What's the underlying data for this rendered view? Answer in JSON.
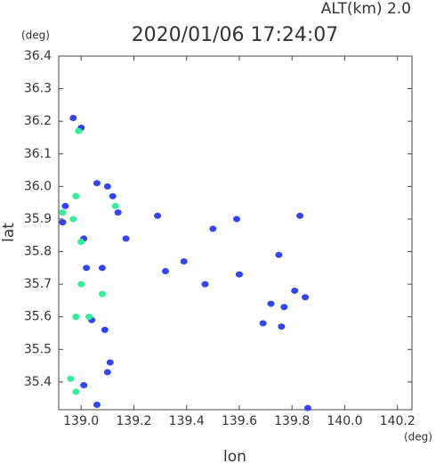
{
  "chart_data": {
    "type": "scatter",
    "title": "2020/01/06 17:24:07",
    "subtitle": "ALT(km) 2.0",
    "y_unit": "(deg)",
    "x_unit": "(deg)",
    "xlabel": "lon",
    "ylabel": "lat",
    "xlim": [
      138.915,
      140.255
    ],
    "ylim": [
      35.315,
      36.4
    ],
    "xticks": [
      {
        "value": 139,
        "label": "139.0"
      },
      139.2,
      139.4,
      139.6,
      139.8,
      {
        "value": 140,
        "label": "140.0"
      },
      140.2
    ],
    "yticks": [
      35.4,
      35.5,
      35.6,
      35.7,
      35.8,
      35.9,
      {
        "value": 36,
        "label": "36.0"
      },
      36.1,
      36.2,
      36.3,
      36.4
    ],
    "series": [
      {
        "color": "#3344ee",
        "x": [
          138.97,
          139.0,
          139.06,
          139.1,
          139.12,
          139.14,
          139.17,
          139.29,
          139.32,
          139.39,
          139.47,
          139.5,
          139.59,
          139.6,
          139.75,
          139.83,
          139.72,
          139.77,
          139.81,
          139.85,
          139.76,
          139.69,
          138.94,
          138.93,
          139.01,
          139.02,
          139.08,
          139.04,
          139.09,
          139.1,
          139.01,
          139.06,
          139.86,
          139.11
        ],
        "values": [
          36.21,
          36.18,
          36.01,
          36.0,
          35.97,
          35.92,
          35.84,
          35.91,
          35.74,
          35.77,
          35.7,
          35.87,
          35.9,
          35.73,
          35.79,
          35.91,
          35.64,
          35.63,
          35.68,
          35.66,
          35.57,
          35.58,
          35.94,
          35.89,
          35.84,
          35.75,
          35.75,
          35.59,
          35.56,
          35.43,
          35.39,
          35.33,
          35.32,
          35.46
        ]
      },
      {
        "color": "#33ee99",
        "x": [
          138.99,
          138.98,
          138.93,
          138.97,
          139.0,
          139.0,
          139.08,
          138.98,
          139.03,
          138.96,
          138.98,
          139.13
        ],
        "values": [
          36.17,
          35.97,
          35.92,
          35.9,
          35.83,
          35.7,
          35.67,
          35.6,
          35.6,
          35.41,
          35.37,
          35.94
        ]
      }
    ]
  }
}
